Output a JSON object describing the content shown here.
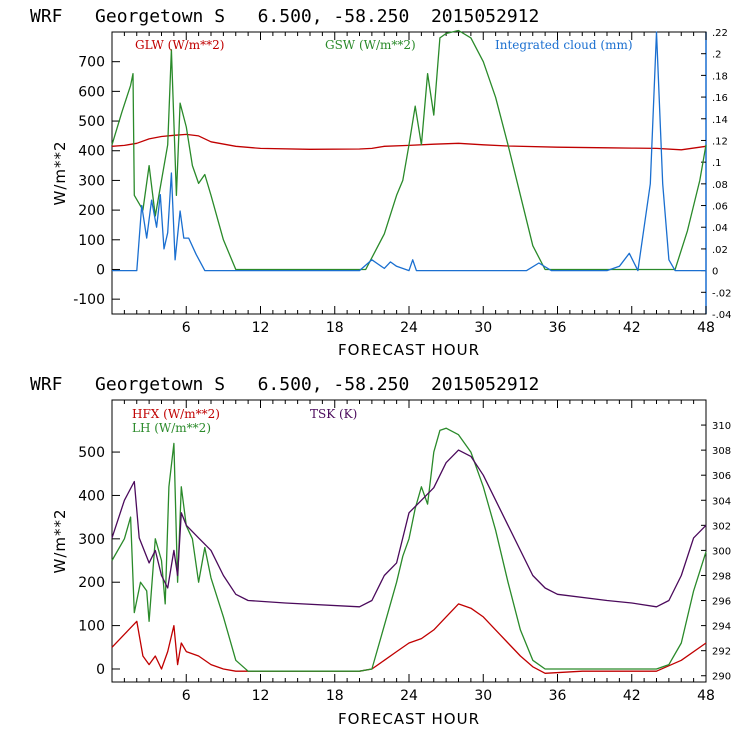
{
  "chart_data": [
    {
      "type": "line",
      "title": "WRF   Georgetown S   6.500, -58.250  2015052912",
      "xlabel": "FORECAST HOUR",
      "ylabel": "W/m**2",
      "xlim": [
        0,
        48
      ],
      "ylim": [
        -150,
        800
      ],
      "x_ticks": [
        "6",
        "12",
        "18",
        "24",
        "30",
        "36",
        "42",
        "48"
      ],
      "y_ticks": [
        "-100",
        "0",
        "100",
        "200",
        "300",
        "400",
        "500",
        "600",
        "700"
      ],
      "y2_range": [
        -0.04,
        0.22
      ],
      "y2_ticks": [
        ".22",
        ".2",
        ".18",
        ".16",
        ".14",
        ".12",
        ".1",
        ".08",
        ".06",
        ".04",
        ".02",
        "0",
        "-.02",
        "-.04"
      ],
      "series": [
        {
          "name": "GLW (W/m**2)",
          "color": "#c00000",
          "axis": "left",
          "points": [
            [
              0,
              415
            ],
            [
              1,
              418
            ],
            [
              2,
              425
            ],
            [
              3,
              440
            ],
            [
              4,
              448
            ],
            [
              5,
              452
            ],
            [
              6,
              455
            ],
            [
              7,
              450
            ],
            [
              8,
              430
            ],
            [
              10,
              415
            ],
            [
              12,
              408
            ],
            [
              16,
              405
            ],
            [
              20,
              406
            ],
            [
              21,
              408
            ],
            [
              22,
              415
            ],
            [
              24,
              418
            ],
            [
              26,
              422
            ],
            [
              28,
              425
            ],
            [
              30,
              420
            ],
            [
              32,
              416
            ],
            [
              36,
              412
            ],
            [
              40,
              410
            ],
            [
              42,
              409
            ],
            [
              44,
              408
            ],
            [
              46,
              403
            ],
            [
              48,
              415
            ]
          ]
        },
        {
          "name": "GSW (W/m**2)",
          "color": "#2a8a2a",
          "axis": "left",
          "points": [
            [
              0,
              420
            ],
            [
              0.8,
              530
            ],
            [
              1.5,
              620
            ],
            [
              1.7,
              660
            ],
            [
              1.8,
              250
            ],
            [
              2.5,
              200
            ],
            [
              3,
              350
            ],
            [
              3.5,
              180
            ],
            [
              4,
              300
            ],
            [
              4.5,
              420
            ],
            [
              4.8,
              740
            ],
            [
              5.2,
              250
            ],
            [
              5.5,
              560
            ],
            [
              6,
              480
            ],
            [
              6.5,
              350
            ],
            [
              7,
              290
            ],
            [
              7.5,
              320
            ],
            [
              8,
              250
            ],
            [
              9,
              100
            ],
            [
              10,
              0
            ],
            [
              20.5,
              0
            ],
            [
              22,
              120
            ],
            [
              23,
              250
            ],
            [
              23.5,
              300
            ],
            [
              24,
              420
            ],
            [
              24.5,
              550
            ],
            [
              25,
              420
            ],
            [
              25.5,
              660
            ],
            [
              26,
              520
            ],
            [
              26.5,
              780
            ],
            [
              27,
              795
            ],
            [
              28,
              805
            ],
            [
              29,
              780
            ],
            [
              30,
              700
            ],
            [
              31,
              580
            ],
            [
              32,
              420
            ],
            [
              33,
              250
            ],
            [
              34,
              80
            ],
            [
              35,
              0
            ],
            [
              45.5,
              0
            ],
            [
              46.5,
              130
            ],
            [
              47.5,
              300
            ],
            [
              48,
              420
            ]
          ]
        },
        {
          "name": "Integrated cloud (mm)",
          "color": "#1a6fd0",
          "axis": "right",
          "points": [
            [
              0,
              0
            ],
            [
              2,
              0
            ],
            [
              2.4,
              0.06
            ],
            [
              2.8,
              0.03
            ],
            [
              3.2,
              0.065
            ],
            [
              3.6,
              0.04
            ],
            [
              3.9,
              0.07
            ],
            [
              4.2,
              0.02
            ],
            [
              4.5,
              0.035
            ],
            [
              4.8,
              0.09
            ],
            [
              5.1,
              0.01
            ],
            [
              5.5,
              0.055
            ],
            [
              5.8,
              0.03
            ],
            [
              6.2,
              0.03
            ],
            [
              6.8,
              0.015
            ],
            [
              7.5,
              0
            ],
            [
              20,
              0
            ],
            [
              21,
              0.01
            ],
            [
              21.5,
              0.006
            ],
            [
              22,
              0.002
            ],
            [
              22.5,
              0.008
            ],
            [
              23,
              0.004
            ],
            [
              24,
              0
            ],
            [
              24.3,
              0.01
            ],
            [
              24.6,
              0
            ],
            [
              33.5,
              0
            ],
            [
              34.5,
              0.007
            ],
            [
              35.5,
              0
            ],
            [
              40,
              0
            ],
            [
              41,
              0.004
            ],
            [
              41.8,
              0.016
            ],
            [
              42.5,
              0
            ],
            [
              43.5,
              0.08
            ],
            [
              44,
              0.22
            ],
            [
              44.5,
              0.08
            ],
            [
              45,
              0.01
            ],
            [
              45.5,
              0
            ],
            [
              48,
              0
            ]
          ]
        }
      ]
    },
    {
      "type": "line",
      "title": "WRF   Georgetown S   6.500, -58.250  2015052912",
      "xlabel": "FORECAST HOUR",
      "ylabel": "W/m**2",
      "xlim": [
        0,
        48
      ],
      "ylim": [
        -30,
        620
      ],
      "x_ticks": [
        "6",
        "12",
        "18",
        "24",
        "30",
        "36",
        "42",
        "48"
      ],
      "y_ticks": [
        "0",
        "100",
        "200",
        "300",
        "400",
        "500"
      ],
      "y2_range": [
        289.5,
        312
      ],
      "y2_ticks": [
        "310",
        "308",
        "306",
        "304",
        "302",
        "300",
        "298",
        "296",
        "294",
        "292",
        "290"
      ],
      "series": [
        {
          "name": "HFX (W/m**2)",
          "color": "#c00000",
          "axis": "left",
          "points": [
            [
              0,
              50
            ],
            [
              1,
              80
            ],
            [
              2,
              110
            ],
            [
              2.5,
              30
            ],
            [
              3,
              10
            ],
            [
              3.5,
              30
            ],
            [
              4,
              0
            ],
            [
              4.5,
              40
            ],
            [
              5,
              100
            ],
            [
              5.3,
              10
            ],
            [
              5.6,
              60
            ],
            [
              6,
              40
            ],
            [
              7,
              30
            ],
            [
              8,
              10
            ],
            [
              9,
              0
            ],
            [
              10,
              -5
            ],
            [
              20,
              -5
            ],
            [
              21,
              0
            ],
            [
              22,
              20
            ],
            [
              23,
              40
            ],
            [
              24,
              60
            ],
            [
              25,
              70
            ],
            [
              26,
              90
            ],
            [
              27,
              120
            ],
            [
              28,
              150
            ],
            [
              29,
              140
            ],
            [
              30,
              120
            ],
            [
              31,
              90
            ],
            [
              32,
              60
            ],
            [
              33,
              30
            ],
            [
              34,
              5
            ],
            [
              35,
              -10
            ],
            [
              38,
              -5
            ],
            [
              44,
              -5
            ],
            [
              46,
              20
            ],
            [
              48,
              60
            ]
          ]
        },
        {
          "name": "LH (W/m**2)",
          "color": "#2a8a2a",
          "axis": "left",
          "points": [
            [
              0,
              250
            ],
            [
              1,
              300
            ],
            [
              1.5,
              350
            ],
            [
              1.8,
              130
            ],
            [
              2.3,
              200
            ],
            [
              2.8,
              180
            ],
            [
              3,
              110
            ],
            [
              3.5,
              300
            ],
            [
              4,
              250
            ],
            [
              4.3,
              150
            ],
            [
              4.6,
              420
            ],
            [
              5,
              520
            ],
            [
              5.3,
              200
            ],
            [
              5.6,
              420
            ],
            [
              6,
              330
            ],
            [
              6.5,
              300
            ],
            [
              7,
              200
            ],
            [
              7.5,
              280
            ],
            [
              8,
              210
            ],
            [
              9,
              120
            ],
            [
              10,
              20
            ],
            [
              11,
              -5
            ],
            [
              20,
              -5
            ],
            [
              21,
              0
            ],
            [
              22,
              100
            ],
            [
              23,
              200
            ],
            [
              23.5,
              260
            ],
            [
              24,
              300
            ],
            [
              24.5,
              370
            ],
            [
              25,
              420
            ],
            [
              25.5,
              380
            ],
            [
              26,
              500
            ],
            [
              26.5,
              550
            ],
            [
              27,
              555
            ],
            [
              28,
              540
            ],
            [
              29,
              500
            ],
            [
              30,
              420
            ],
            [
              31,
              320
            ],
            [
              32,
              200
            ],
            [
              33,
              90
            ],
            [
              34,
              20
            ],
            [
              35,
              0
            ],
            [
              44,
              0
            ],
            [
              45,
              10
            ],
            [
              46,
              60
            ],
            [
              47,
              180
            ],
            [
              48,
              270
            ]
          ]
        },
        {
          "name": "TSK (K)",
          "color": "#4b0a5c",
          "axis": "right",
          "points": [
            [
              0,
              301
            ],
            [
              1,
              304
            ],
            [
              1.8,
              305.5
            ],
            [
              2.2,
              301
            ],
            [
              3,
              299
            ],
            [
              3.5,
              300
            ],
            [
              4,
              298
            ],
            [
              4.5,
              297
            ],
            [
              5,
              300
            ],
            [
              5.3,
              298
            ],
            [
              5.6,
              303
            ],
            [
              6,
              302
            ],
            [
              7,
              301
            ],
            [
              8,
              300
            ],
            [
              9,
              298
            ],
            [
              10,
              296.5
            ],
            [
              11,
              296
            ],
            [
              14,
              295.8
            ],
            [
              20,
              295.5
            ],
            [
              21,
              296
            ],
            [
              22,
              298
            ],
            [
              23,
              299
            ],
            [
              24,
              303
            ],
            [
              25,
              304
            ],
            [
              26,
              305
            ],
            [
              27,
              307
            ],
            [
              28,
              308
            ],
            [
              29,
              307.5
            ],
            [
              30,
              306
            ],
            [
              32,
              302
            ],
            [
              34,
              298
            ],
            [
              35,
              297
            ],
            [
              36,
              296.5
            ],
            [
              40,
              296
            ],
            [
              42,
              295.8
            ],
            [
              44,
              295.5
            ],
            [
              45,
              296
            ],
            [
              46,
              298
            ],
            [
              47,
              301
            ],
            [
              48,
              302
            ]
          ]
        }
      ]
    }
  ]
}
